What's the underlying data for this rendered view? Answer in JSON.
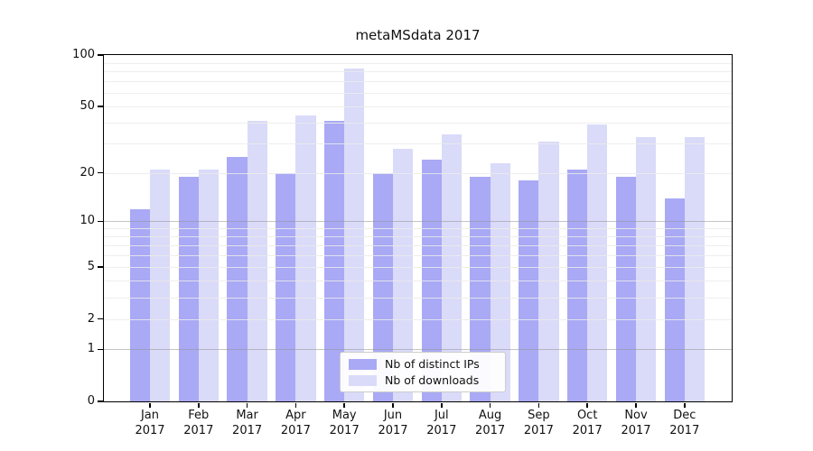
{
  "chart_data": {
    "type": "bar",
    "title": "metaMSdata 2017",
    "categories": [
      "Jan",
      "Feb",
      "Mar",
      "Apr",
      "May",
      "Jun",
      "Jul",
      "Aug",
      "Sep",
      "Oct",
      "Nov",
      "Dec"
    ],
    "category_year": "2017",
    "series": [
      {
        "name": "Nb of distinct IPs",
        "color": "#a9a9f5",
        "values": [
          12,
          19,
          25,
          20,
          41,
          20,
          24,
          19,
          18,
          21,
          19,
          14
        ]
      },
      {
        "name": "Nb of downloads",
        "color": "#dadaf9",
        "values": [
          21,
          21,
          41,
          44,
          83,
          28,
          34,
          23,
          31,
          39,
          33,
          33
        ]
      }
    ],
    "xlabel": "",
    "ylabel": "",
    "ylim": [
      0,
      100
    ],
    "yscale": "log10(1+y)",
    "yticks": [
      "100",
      "50",
      "20",
      "10",
      "5",
      "2",
      "1",
      "0"
    ],
    "grid_minor": [
      2,
      3,
      4,
      5,
      6,
      7,
      8,
      9,
      20,
      30,
      40,
      50,
      60,
      70,
      80,
      90
    ],
    "grid_major": [
      1,
      10
    ],
    "grid_on": true,
    "legend_position": "lower center",
    "colors": {
      "grid_minor": "#f0f0f0",
      "grid_major": "#c3c3c3",
      "axis": "#000000",
      "background": "#ffffff"
    }
  }
}
